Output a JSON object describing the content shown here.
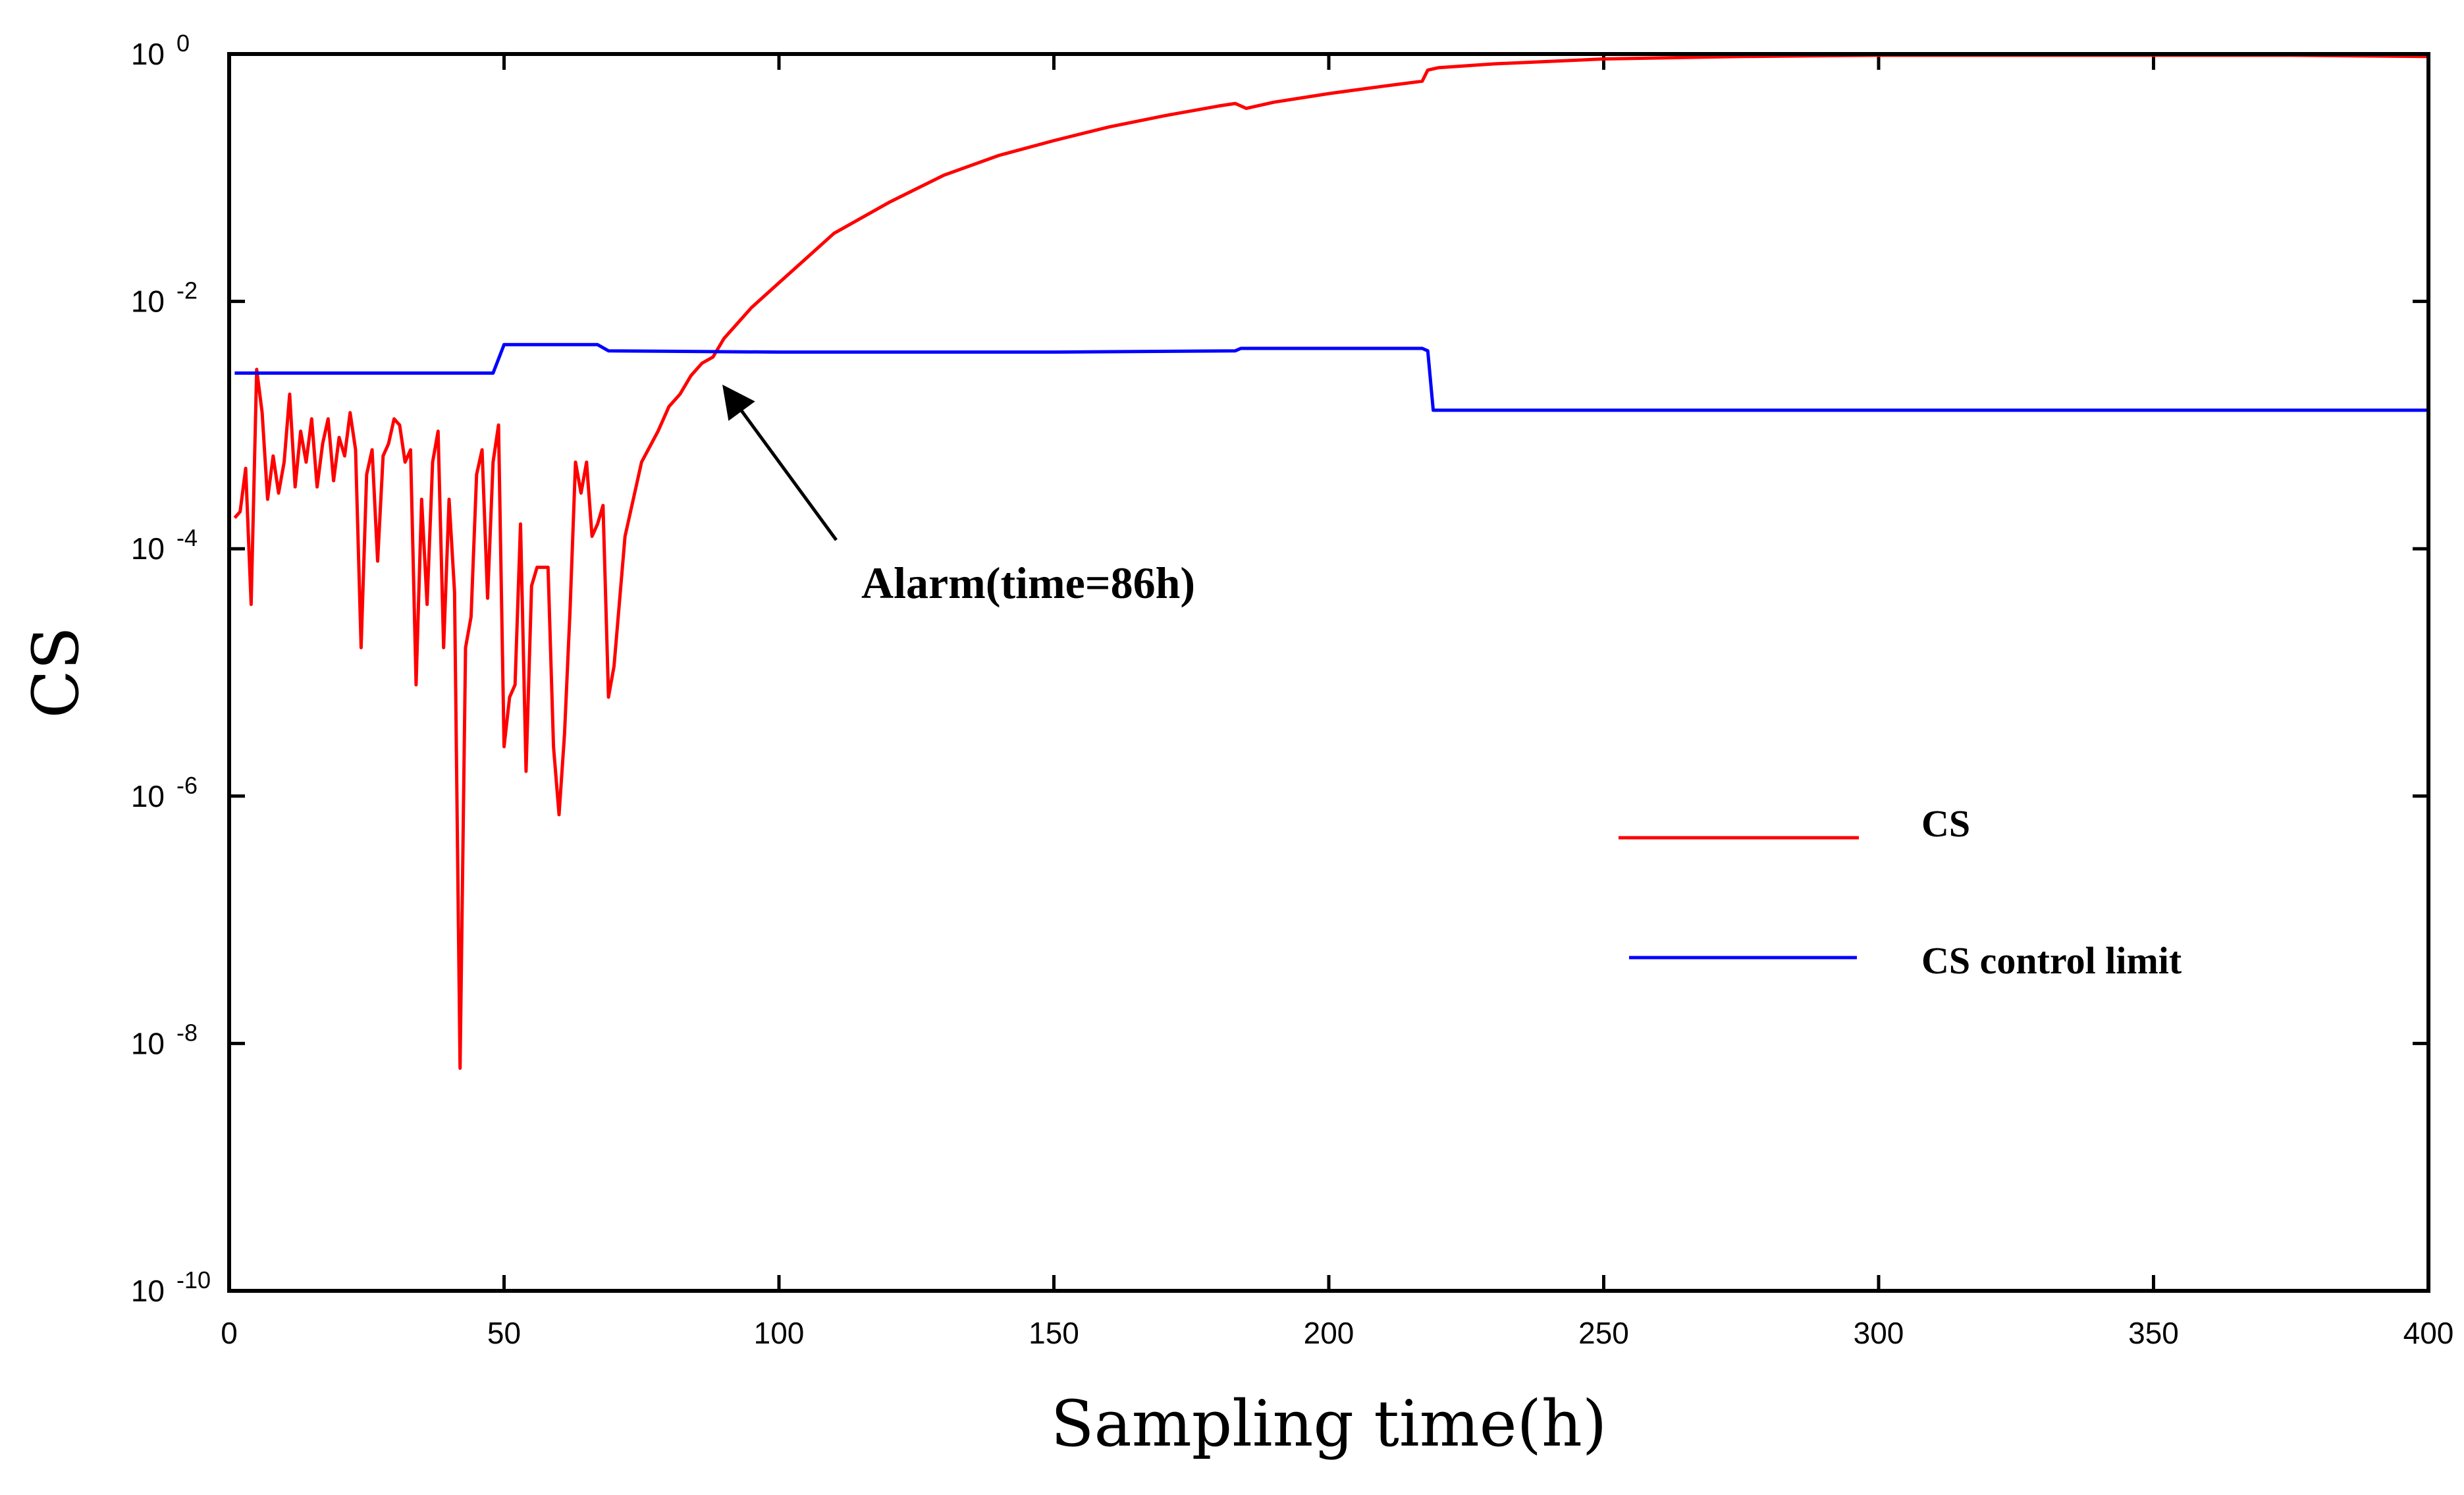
{
  "chart_data": {
    "type": "line",
    "title": "",
    "xlabel": "Sampling time(h)",
    "ylabel": "CS",
    "xlim": [
      0,
      400
    ],
    "ylim_log10": [
      -10,
      0
    ],
    "yscale": "log",
    "x_ticks": [
      {
        "value": 0,
        "label": "0"
      },
      {
        "value": 50,
        "label": "50"
      },
      {
        "value": 100,
        "label": "100"
      },
      {
        "value": 150,
        "label": "150"
      },
      {
        "value": 200,
        "label": "200"
      },
      {
        "value": 250,
        "label": "250"
      },
      {
        "value": 300,
        "label": "300"
      },
      {
        "value": 350,
        "label": "350"
      },
      {
        "value": 400,
        "label": "400"
      }
    ],
    "y_ticks": [
      {
        "exp": 0,
        "base": "10",
        "sup": "0"
      },
      {
        "exp": -2,
        "base": "10",
        "sup": "-2"
      },
      {
        "exp": -4,
        "base": "10",
        "sup": "-4"
      },
      {
        "exp": -6,
        "base": "10",
        "sup": "-6"
      },
      {
        "exp": -8,
        "base": "10",
        "sup": "-8"
      },
      {
        "exp": -10,
        "base": "10",
        "sup": "-10"
      }
    ],
    "grid": false,
    "legend_position": "right-middle",
    "series": [
      {
        "name": "CS",
        "color": "#ff0000",
        "x": [
          1,
          2,
          3,
          4,
          5,
          6,
          7,
          8,
          9,
          10,
          11,
          12,
          13,
          14,
          15,
          16,
          17,
          18,
          19,
          20,
          21,
          22,
          23,
          24,
          25,
          26,
          27,
          28,
          29,
          30,
          31,
          32,
          33,
          34,
          35,
          36,
          37,
          38,
          39,
          40,
          41,
          42,
          43,
          44,
          45,
          46,
          47,
          48,
          49,
          50,
          51,
          52,
          53,
          54,
          55,
          56,
          57,
          58,
          59,
          60,
          61,
          62,
          63,
          64,
          65,
          66,
          67,
          68,
          69,
          70,
          72,
          75,
          78,
          80,
          82,
          84,
          86,
          88,
          90,
          92,
          95,
          100,
          105,
          110,
          120,
          130,
          140,
          150,
          160,
          170,
          180,
          183,
          185,
          190,
          200,
          210,
          217,
          218,
          220,
          230,
          250,
          275,
          300,
          325,
          350,
          375,
          400
        ],
        "log10_values": [
          -3.75,
          -3.7,
          -3.35,
          -4.45,
          -2.55,
          -2.9,
          -3.6,
          -3.25,
          -3.55,
          -3.3,
          -2.75,
          -3.5,
          -3.05,
          -3.3,
          -2.95,
          -3.5,
          -3.15,
          -2.95,
          -3.45,
          -3.1,
          -3.25,
          -2.9,
          -3.2,
          -4.8,
          -3.4,
          -3.2,
          -4.1,
          -3.25,
          -3.15,
          -2.95,
          -3.0,
          -3.3,
          -3.2,
          -5.1,
          -3.6,
          -4.45,
          -3.3,
          -3.05,
          -4.8,
          -3.6,
          -4.35,
          -8.2,
          -4.8,
          -4.55,
          -3.4,
          -3.2,
          -4.4,
          -3.3,
          -3.0,
          -5.6,
          -5.2,
          -5.1,
          -3.8,
          -5.8,
          -4.3,
          -4.15,
          -4.15,
          -4.15,
          -5.6,
          -6.15,
          -5.5,
          -4.5,
          -3.3,
          -3.55,
          -3.3,
          -3.9,
          -3.8,
          -3.65,
          -5.2,
          -4.95,
          -3.9,
          -3.3,
          -3.05,
          -2.85,
          -2.75,
          -2.6,
          -2.5,
          -2.45,
          -2.3,
          -2.2,
          -2.05,
          -1.85,
          -1.65,
          -1.45,
          -1.2,
          -0.98,
          -0.82,
          -0.7,
          -0.59,
          -0.5,
          -0.42,
          -0.4,
          -0.44,
          -0.39,
          -0.32,
          -0.26,
          -0.22,
          -0.13,
          -0.11,
          -0.08,
          -0.04,
          -0.02,
          -0.01,
          -0.01,
          -0.01,
          -0.01,
          -0.02
        ]
      },
      {
        "name": "CS control limit",
        "color": "#0000ff",
        "x": [
          1,
          48,
          50,
          67,
          69,
          100,
          150,
          183,
          184,
          217,
          218,
          219,
          400
        ],
        "log10_values": [
          -2.58,
          -2.58,
          -2.35,
          -2.35,
          -2.4,
          -2.41,
          -2.41,
          -2.4,
          -2.38,
          -2.38,
          -2.4,
          -2.88,
          -2.88
        ]
      }
    ],
    "annotations": [
      {
        "text": "Alarm(time=86h)",
        "target_x": 86,
        "target_log10": -2.6
      }
    ]
  }
}
